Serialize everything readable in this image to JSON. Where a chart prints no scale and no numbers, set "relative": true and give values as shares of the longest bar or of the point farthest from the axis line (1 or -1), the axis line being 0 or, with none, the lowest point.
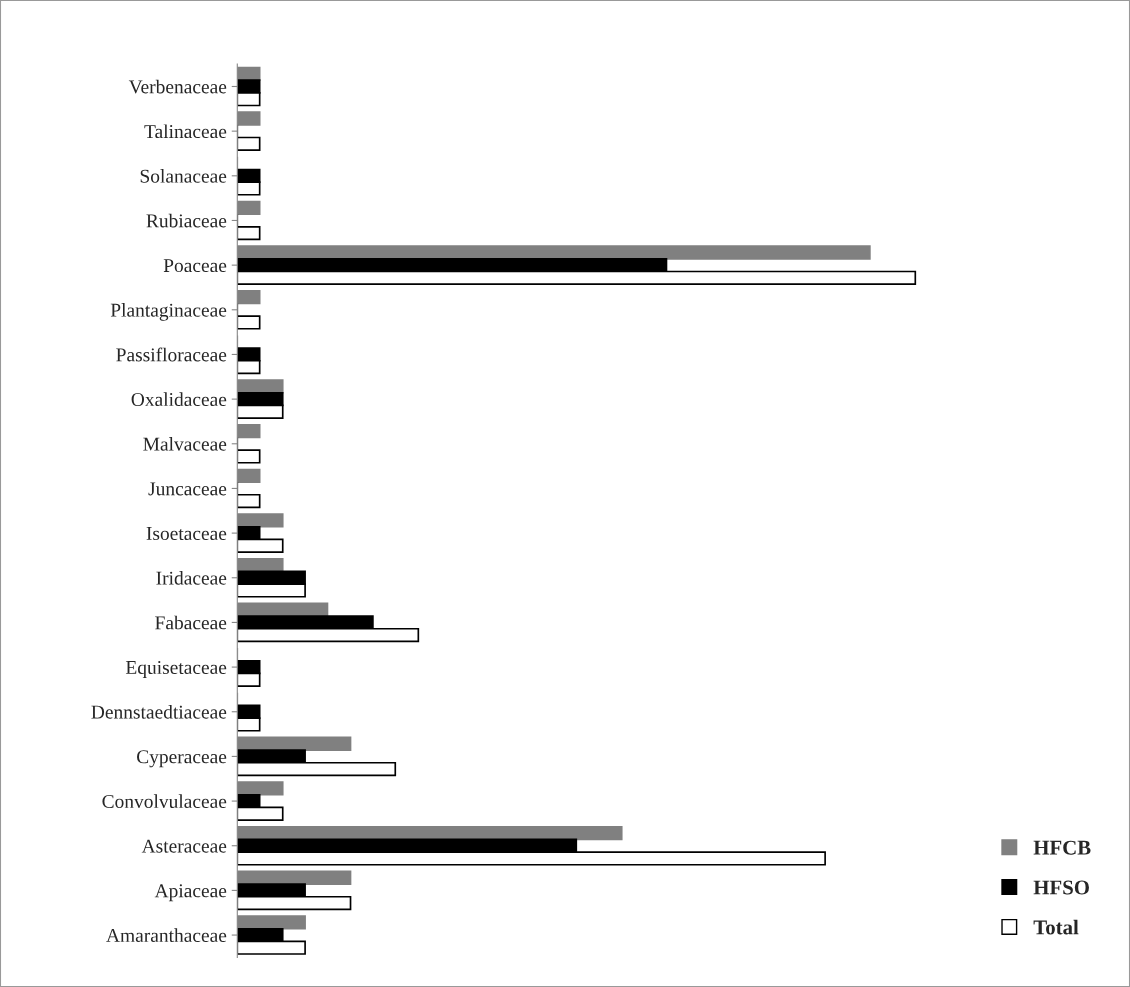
{
  "chart_data": {
    "type": "bar",
    "orientation": "horizontal",
    "relative": true,
    "legend": "bottom right",
    "categories": [
      "Verbenaceae",
      "Talinaceae",
      "Solanaceae",
      "Rubiaceae",
      "Poaceae",
      "Plantaginaceae",
      "Passifloraceae",
      "Oxalidaceae",
      "Malvaceae",
      "Juncaceae",
      "Isoetaceae",
      "Iridaceae",
      "Fabaceae",
      "Equisetaceae",
      "Dennstaedtiaceae",
      "Cyperaceae",
      "Convolvulaceae",
      "Asteraceae",
      "Apiaceae",
      "Amaranthaceae"
    ],
    "series": [
      {
        "name": "HFCB",
        "color": "#808080",
        "values": [
          0.033,
          0.033,
          0,
          0.033,
          0.933,
          0.033,
          0,
          0.067,
          0.033,
          0.033,
          0.067,
          0.067,
          0.133,
          0,
          0,
          0.167,
          0.067,
          0.567,
          0.167,
          0.1
        ]
      },
      {
        "name": "HFSO",
        "color": "#000000",
        "values": [
          0.033,
          0,
          0.033,
          0,
          0.633,
          0,
          0.033,
          0.067,
          0,
          0,
          0.033,
          0.1,
          0.2,
          0.033,
          0.033,
          0.1,
          0.033,
          0.5,
          0.1,
          0.067
        ]
      },
      {
        "name": "Total",
        "color": "#ffffff",
        "values": [
          0.033,
          0.033,
          0.033,
          0.033,
          1,
          0.033,
          0.033,
          0.067,
          0.033,
          0.033,
          0.067,
          0.1,
          0.267,
          0.033,
          0.033,
          0.233,
          0.067,
          0.867,
          0.167,
          0.1
        ]
      }
    ]
  }
}
